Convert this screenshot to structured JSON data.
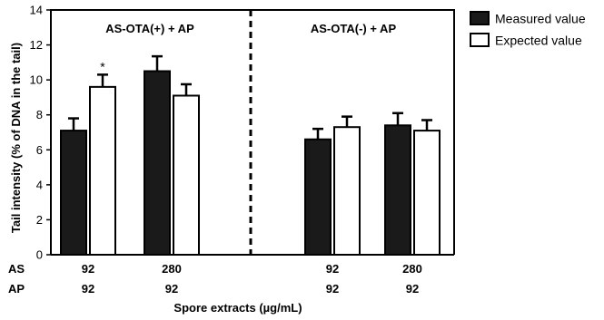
{
  "chart_data": {
    "type": "bar",
    "ylabel": "Tail intensity (% of DNA in the tail)",
    "xlabel": "Spore extracts (µg/mL)",
    "ylim": [
      0,
      14
    ],
    "yticks": [
      0,
      2,
      4,
      6,
      8,
      10,
      12,
      14
    ],
    "row_labels": [
      "AS",
      "AP"
    ],
    "groups": [
      {
        "title": "AS-OTA(+) + AP"
      },
      {
        "title": "AS-OTA(-) + AP"
      }
    ],
    "categories": [
      {
        "AS": "92",
        "AP": "92"
      },
      {
        "AS": "280",
        "AP": "92"
      },
      {
        "AS": "92",
        "AP": "92"
      },
      {
        "AS": "280",
        "AP": "92"
      }
    ],
    "series": [
      {
        "name": "Measured value",
        "color": "#1a1a1a",
        "values": [
          7.1,
          10.5,
          6.6,
          7.4
        ],
        "errors": [
          0.7,
          0.85,
          0.6,
          0.7
        ]
      },
      {
        "name": "Expected value",
        "color": "#ffffff",
        "values": [
          9.6,
          9.1,
          7.3,
          7.1
        ],
        "errors": [
          0.7,
          0.65,
          0.6,
          0.6
        ]
      }
    ],
    "annotations": [
      {
        "text": "*",
        "category": 0,
        "series": 1
      }
    ],
    "legend_position": "top-right",
    "grid": false
  }
}
